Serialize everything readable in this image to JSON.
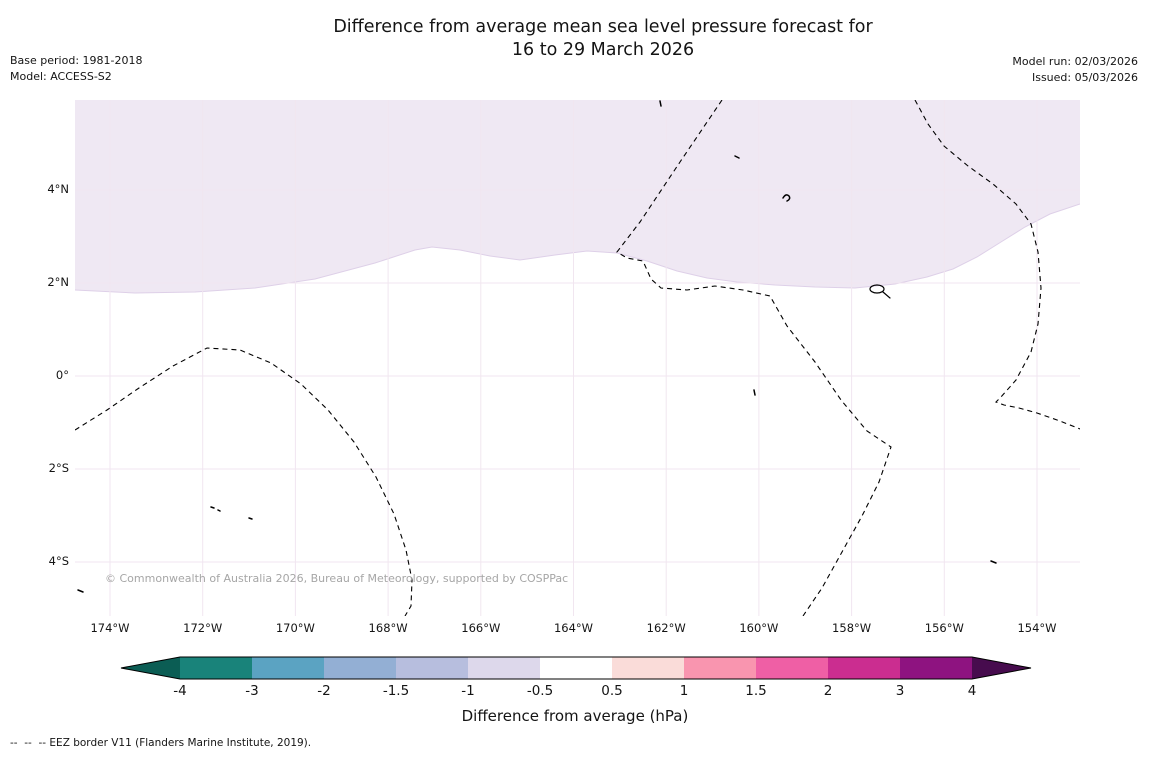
{
  "title": {
    "line1": "Difference from average mean sea level pressure forecast for",
    "line2": "16 to 29 March 2026"
  },
  "meta_left": {
    "base_period": "Base period: 1981-2018",
    "model": "Model: ACCESS-S2"
  },
  "meta_right": {
    "model_run": "Model run: 02/03/2026",
    "issued": "Issued: 05/03/2026"
  },
  "map": {
    "watermark": "© Commonwealth of Australia 2026, Bureau of Meteorology, supported by COSPPac",
    "x_ticks": [
      "174°W",
      "172°W",
      "170°W",
      "168°W",
      "166°W",
      "164°W",
      "162°W",
      "160°W",
      "158°W",
      "156°W",
      "154°W"
    ],
    "y_ticks": [
      "4°N",
      "2°N",
      "0°",
      "2°S",
      "4°S"
    ],
    "shade_color": "#efe8f3",
    "shade_edge_color": "#ded0e8",
    "grid_color": "#f1e6f0",
    "eez_border_color": "#000000"
  },
  "colorbar": {
    "label": "Difference from average (hPa)",
    "tick_labels": [
      "-4",
      "-3",
      "-2",
      "-1.5",
      "-1",
      "-0.5",
      "0.5",
      "1",
      "1.5",
      "2",
      "3",
      "4"
    ],
    "tick_values": [
      -4,
      -3,
      -2,
      -1.5,
      -1,
      -0.5,
      0.5,
      1,
      1.5,
      2,
      3,
      4
    ],
    "segment_colors": [
      "#19837a",
      "#5ba3c2",
      "#93afd4",
      "#b7bede",
      "#ddd8eb",
      "#ffffff",
      "#fadcd9",
      "#f995af",
      "#ef5fa5",
      "#cb2d90",
      "#8e1380"
    ],
    "left_arrow_color": "#0b5d54",
    "right_arrow_color": "#470c4e",
    "outline_color": "#000000"
  },
  "footer": {
    "eez_note": "--  --  -- EEZ border V11 (Flanders Marine Institute, 2019)."
  }
}
